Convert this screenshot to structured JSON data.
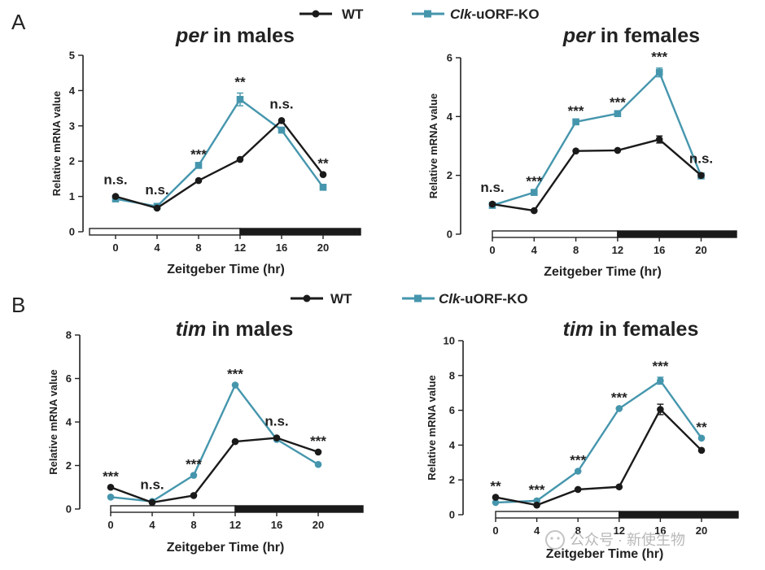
{
  "figure": {
    "panels": [
      "A",
      "B"
    ],
    "legend": {
      "wt": {
        "label": "WT",
        "color": "#1a1a1a"
      },
      "ko": {
        "label_italic": "Clk",
        "label_rest": "-uORF-KO",
        "color": "#4596ad"
      }
    },
    "watermark": "公众号 · 新使生物"
  },
  "chart_data": [
    {
      "type": "line",
      "panel": "A",
      "title_gene": "per",
      "title_rest": " in males",
      "xlabel": "Zeitgeber Time (hr)",
      "ylabel": "Relative mRNA value",
      "x": [
        0,
        4,
        8,
        12,
        16,
        20
      ],
      "xticks": [
        "0",
        "4",
        "8",
        "12",
        "16",
        "20"
      ],
      "ylim": [
        0,
        5
      ],
      "yticks": [
        "0",
        "1",
        "2",
        "3",
        "4",
        "5"
      ],
      "ytick_values": [
        0,
        1,
        2,
        3,
        4,
        5
      ],
      "series": [
        {
          "name": "WT",
          "values": [
            1.0,
            0.67,
            1.45,
            2.05,
            3.15,
            1.62
          ]
        },
        {
          "name": "Clk-uORF-KO",
          "values": [
            0.93,
            0.72,
            1.88,
            3.75,
            2.88,
            1.26
          ],
          "errors": [
            0,
            0,
            0,
            0.18,
            0,
            0
          ]
        }
      ],
      "annotations": [
        "n.s.",
        "n.s.",
        "***",
        "**",
        "n.s.",
        "**"
      ],
      "light_dark": {
        "light": [
          0,
          12
        ],
        "dark": [
          12,
          24
        ]
      }
    },
    {
      "type": "line",
      "panel": "A",
      "title_gene": "per",
      "title_rest": " in females",
      "xlabel": "Zeitgeber Time (hr)",
      "ylabel": "Relative mRNA value",
      "x": [
        0,
        4,
        8,
        12,
        16,
        20
      ],
      "xticks": [
        "0",
        "4",
        "8",
        "12",
        "16",
        "20"
      ],
      "ylim": [
        0,
        6
      ],
      "yticks": [
        "0",
        "2",
        "4",
        "6"
      ],
      "ytick_values": [
        0,
        2,
        4,
        6
      ],
      "series": [
        {
          "name": "WT",
          "values": [
            1.02,
            0.8,
            2.83,
            2.85,
            3.22,
            2.0
          ],
          "errors": [
            0,
            0,
            0,
            0,
            0.12,
            0
          ]
        },
        {
          "name": "Clk-uORF-KO",
          "values": [
            0.98,
            1.42,
            3.82,
            4.1,
            5.5,
            1.98
          ],
          "errors": [
            0,
            0,
            0,
            0,
            0.15,
            0
          ]
        }
      ],
      "annotations": [
        "n.s.",
        "***",
        "***",
        "***",
        "***",
        "n.s."
      ],
      "light_dark": {
        "light": [
          0,
          12
        ],
        "dark": [
          12,
          24
        ]
      }
    },
    {
      "type": "line",
      "panel": "B",
      "title_gene": "tim",
      "title_rest": " in males",
      "xlabel": "Zeitgeber Time (hr)",
      "ylabel": "Relative mRNA value",
      "x": [
        0,
        4,
        8,
        12,
        16,
        20
      ],
      "xticks": [
        "0",
        "4",
        "8",
        "12",
        "16",
        "20"
      ],
      "ylim": [
        0,
        8
      ],
      "yticks": [
        "0",
        "2",
        "4",
        "6",
        "8"
      ],
      "ytick_values": [
        0,
        2,
        4,
        6,
        8
      ],
      "series": [
        {
          "name": "WT",
          "values": [
            1.0,
            0.3,
            0.62,
            3.1,
            3.27,
            2.62
          ]
        },
        {
          "name": "Clk-uORF-KO",
          "values": [
            0.55,
            0.35,
            1.55,
            5.7,
            3.2,
            2.05
          ]
        }
      ],
      "annotations": [
        "***",
        "n.s.",
        "***",
        "***",
        "n.s.",
        "***"
      ],
      "light_dark": {
        "light": [
          0,
          12
        ],
        "dark": [
          12,
          24
        ]
      }
    },
    {
      "type": "line",
      "panel": "B",
      "title_gene": "tim",
      "title_rest": " in females",
      "xlabel": "Zeitgeber Time (hr)",
      "ylabel": "Relative mRNA value",
      "x": [
        0,
        4,
        8,
        12,
        16,
        20
      ],
      "xticks": [
        "0",
        "4",
        "8",
        "12",
        "16",
        "20"
      ],
      "ylim": [
        0,
        10
      ],
      "yticks": [
        "0",
        "2",
        "4",
        "6",
        "8",
        "10"
      ],
      "ytick_values": [
        0,
        2,
        4,
        6,
        8,
        10
      ],
      "series": [
        {
          "name": "WT",
          "values": [
            1.0,
            0.55,
            1.45,
            1.6,
            6.05,
            3.7
          ],
          "errors": [
            0,
            0,
            0,
            0,
            0.3,
            0
          ]
        },
        {
          "name": "Clk-uORF-KO",
          "values": [
            0.7,
            0.8,
            2.5,
            6.1,
            7.7,
            4.4
          ],
          "errors": [
            0,
            0,
            0,
            0,
            0.2,
            0
          ]
        }
      ],
      "annotations": [
        "**",
        "***",
        "***",
        "***",
        "***",
        "**"
      ],
      "light_dark": {
        "light": [
          0,
          12
        ],
        "dark": [
          12,
          24
        ]
      }
    }
  ]
}
